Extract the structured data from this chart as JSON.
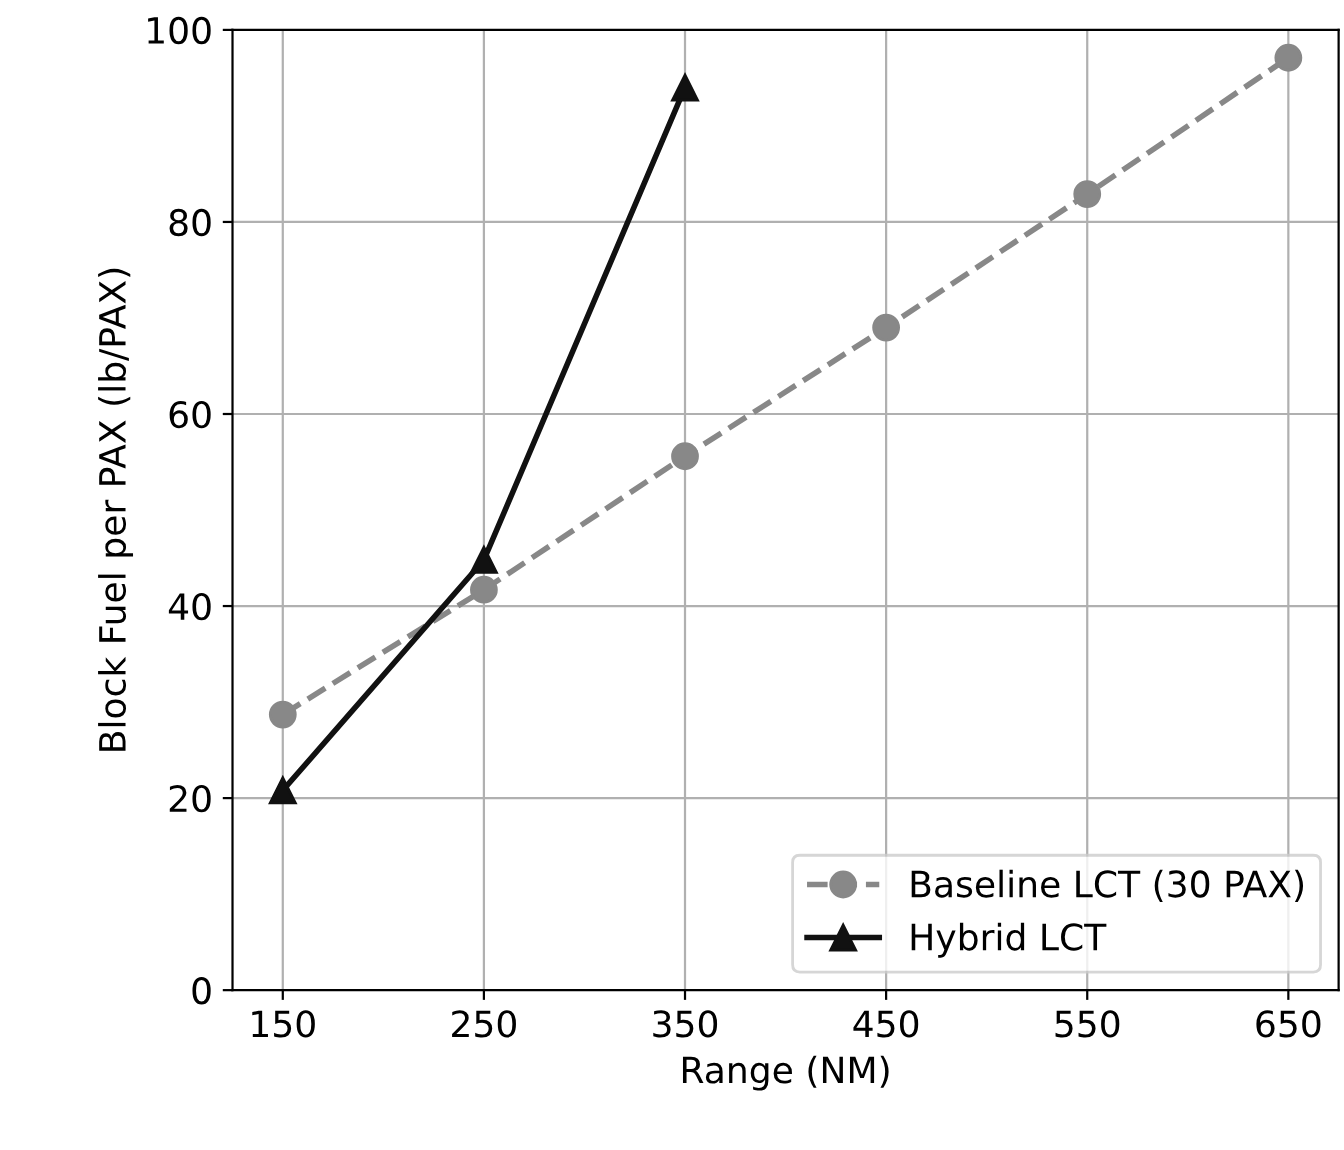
{
  "chart_data": {
    "type": "line",
    "xlabel": "Range (NM)",
    "ylabel": "Block Fuel per PAX (lb/PAX)",
    "x": [
      150,
      250,
      350,
      450,
      550,
      650
    ],
    "series": [
      {
        "name": "Baseline LCT (30 PAX)",
        "color": "#888888",
        "values": [
          28.7,
          41.7,
          55.6,
          69,
          82.9,
          97.1
        ],
        "marker": "circle",
        "line_style": "dashed"
      },
      {
        "name": "Hybrid LCT",
        "color": "#111111",
        "values": [
          20.8,
          44.8,
          94,
          null,
          null,
          null
        ],
        "marker": "triangle",
        "line_style": "solid"
      }
    ],
    "xlim": [
      125,
      675
    ],
    "xticks": [
      150,
      250,
      350,
      450,
      550,
      650
    ],
    "ylim": [
      0,
      100
    ],
    "yticks": [
      0,
      20,
      40,
      60,
      80,
      100
    ],
    "grid": true,
    "legend": "bottom right"
  }
}
